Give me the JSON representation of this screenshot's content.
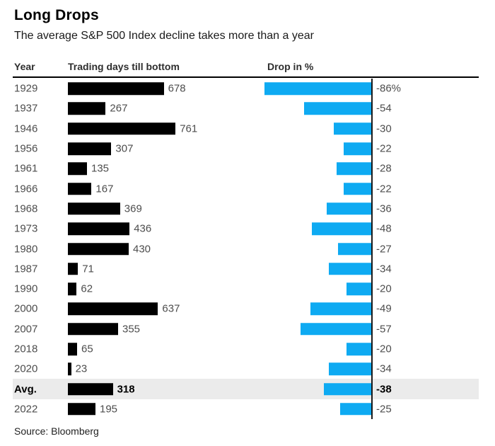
{
  "header": {
    "title": "Long Drops",
    "subtitle": "The average S&P 500 Index decline takes more than a year"
  },
  "columns": {
    "year": "Year",
    "days": "Trading days till bottom",
    "drop": "Drop in %"
  },
  "source": "Source: Bloomberg",
  "colors": {
    "days_bar": "#000000",
    "drop_bar": "#0eaaf2",
    "avg_band": "#ebebeb",
    "value_text": "#4d4d4d",
    "axis_line": "#1a1a1a"
  },
  "chart_data": {
    "type": "bar",
    "orientation": "horizontal",
    "title": "Long Drops",
    "subtitle": "The average S&P 500 Index decline takes more than a year",
    "source": "Source: Bloomberg",
    "categories": [
      "1929",
      "1937",
      "1946",
      "1956",
      "1961",
      "1966",
      "1968",
      "1973",
      "1980",
      "1987",
      "1990",
      "2000",
      "2007",
      "2018",
      "2020",
      "Avg.",
      "2022"
    ],
    "avg_row_index": 15,
    "series": [
      {
        "name": "Trading days till bottom",
        "color": "#000000",
        "values": [
          678,
          267,
          761,
          307,
          135,
          167,
          369,
          436,
          430,
          71,
          62,
          637,
          355,
          65,
          23,
          318,
          195
        ],
        "labels": [
          "678",
          "267",
          "761",
          "307",
          "135",
          "167",
          "369",
          "436",
          "430",
          "71",
          "62",
          "637",
          "355",
          "65",
          "23",
          "318",
          "195"
        ],
        "axis_range": [
          0,
          761
        ],
        "anchor": "left"
      },
      {
        "name": "Drop in %",
        "color": "#0eaaf2",
        "values": [
          -86,
          -54,
          -30,
          -22,
          -28,
          -22,
          -36,
          -48,
          -27,
          -34,
          -20,
          -49,
          -57,
          -20,
          -34,
          -38,
          -25
        ],
        "labels": [
          "-86%",
          "-54",
          "-30",
          "-22",
          "-28",
          "-22",
          "-36",
          "-48",
          "-27",
          "-34",
          "-20",
          "-49",
          "-57",
          "-20",
          "-34",
          "-38",
          "-25"
        ],
        "axis_range": [
          -86,
          0
        ],
        "anchor": "right"
      }
    ],
    "legend": "none",
    "grid": "off"
  }
}
